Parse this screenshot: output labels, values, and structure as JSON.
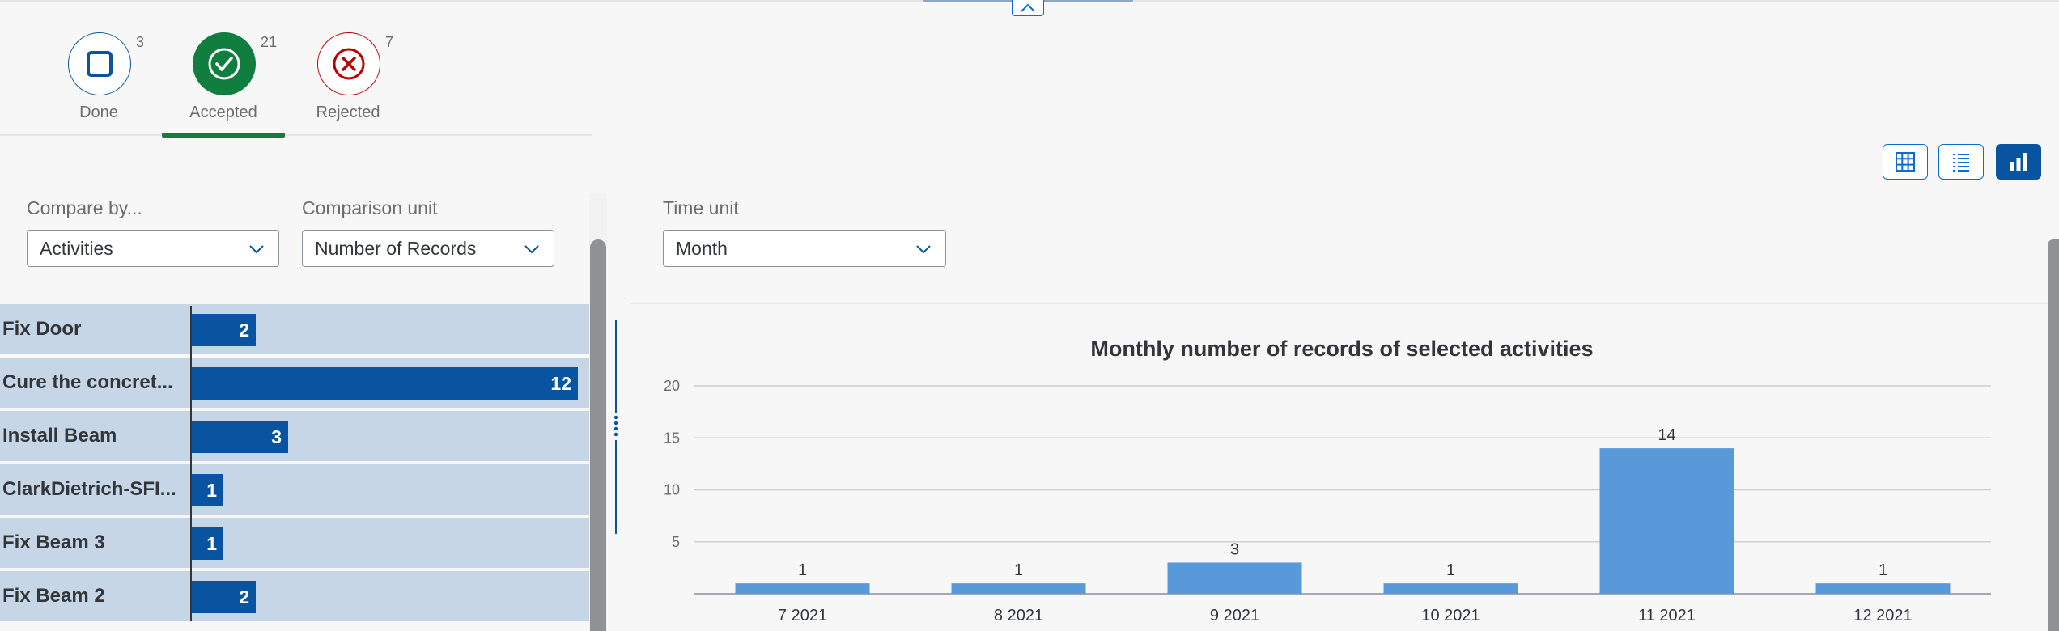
{
  "status_tabs": [
    {
      "label": "Done",
      "count": "3",
      "icon": "checkbox-icon",
      "color": "#0854a0"
    },
    {
      "label": "Accepted",
      "count": "21",
      "icon": "check-circle-icon",
      "color": "#107e3e"
    },
    {
      "label": "Rejected",
      "count": "7",
      "icon": "cancel-circle-icon",
      "color": "#bb0000"
    }
  ],
  "selected_tab": "Accepted",
  "view_switch": {
    "options": [
      "table-view",
      "list-view",
      "chart-view"
    ],
    "active": "chart-view"
  },
  "filters": {
    "compare_by": {
      "label": "Compare by...",
      "value": "Activities"
    },
    "comparison_unit": {
      "label": "Comparison unit",
      "value": "Number of Records"
    },
    "time_unit": {
      "label": "Time unit",
      "value": "Month"
    }
  },
  "activity_bars": [
    {
      "label": "Fix Door",
      "value": 2
    },
    {
      "label": "Cure the concret...",
      "value": 12
    },
    {
      "label": "Install Beam",
      "value": 3
    },
    {
      "label": "ClarkDietrich-SFI...",
      "value": 1
    },
    {
      "label": "Fix Beam 3",
      "value": 1
    },
    {
      "label": "Fix Beam 2",
      "value": 2
    }
  ],
  "chart_data": {
    "type": "bar",
    "title": "Monthly number of records of selected activities",
    "categories": [
      "7 2021",
      "8 2021",
      "9 2021",
      "10 2021",
      "11 2021",
      "12 2021"
    ],
    "values": [
      1,
      1,
      3,
      1,
      14,
      1
    ],
    "ylim": [
      0,
      20
    ],
    "yticks": [
      5,
      10,
      15,
      20
    ],
    "grid": true,
    "bar_color": "#5899da"
  }
}
